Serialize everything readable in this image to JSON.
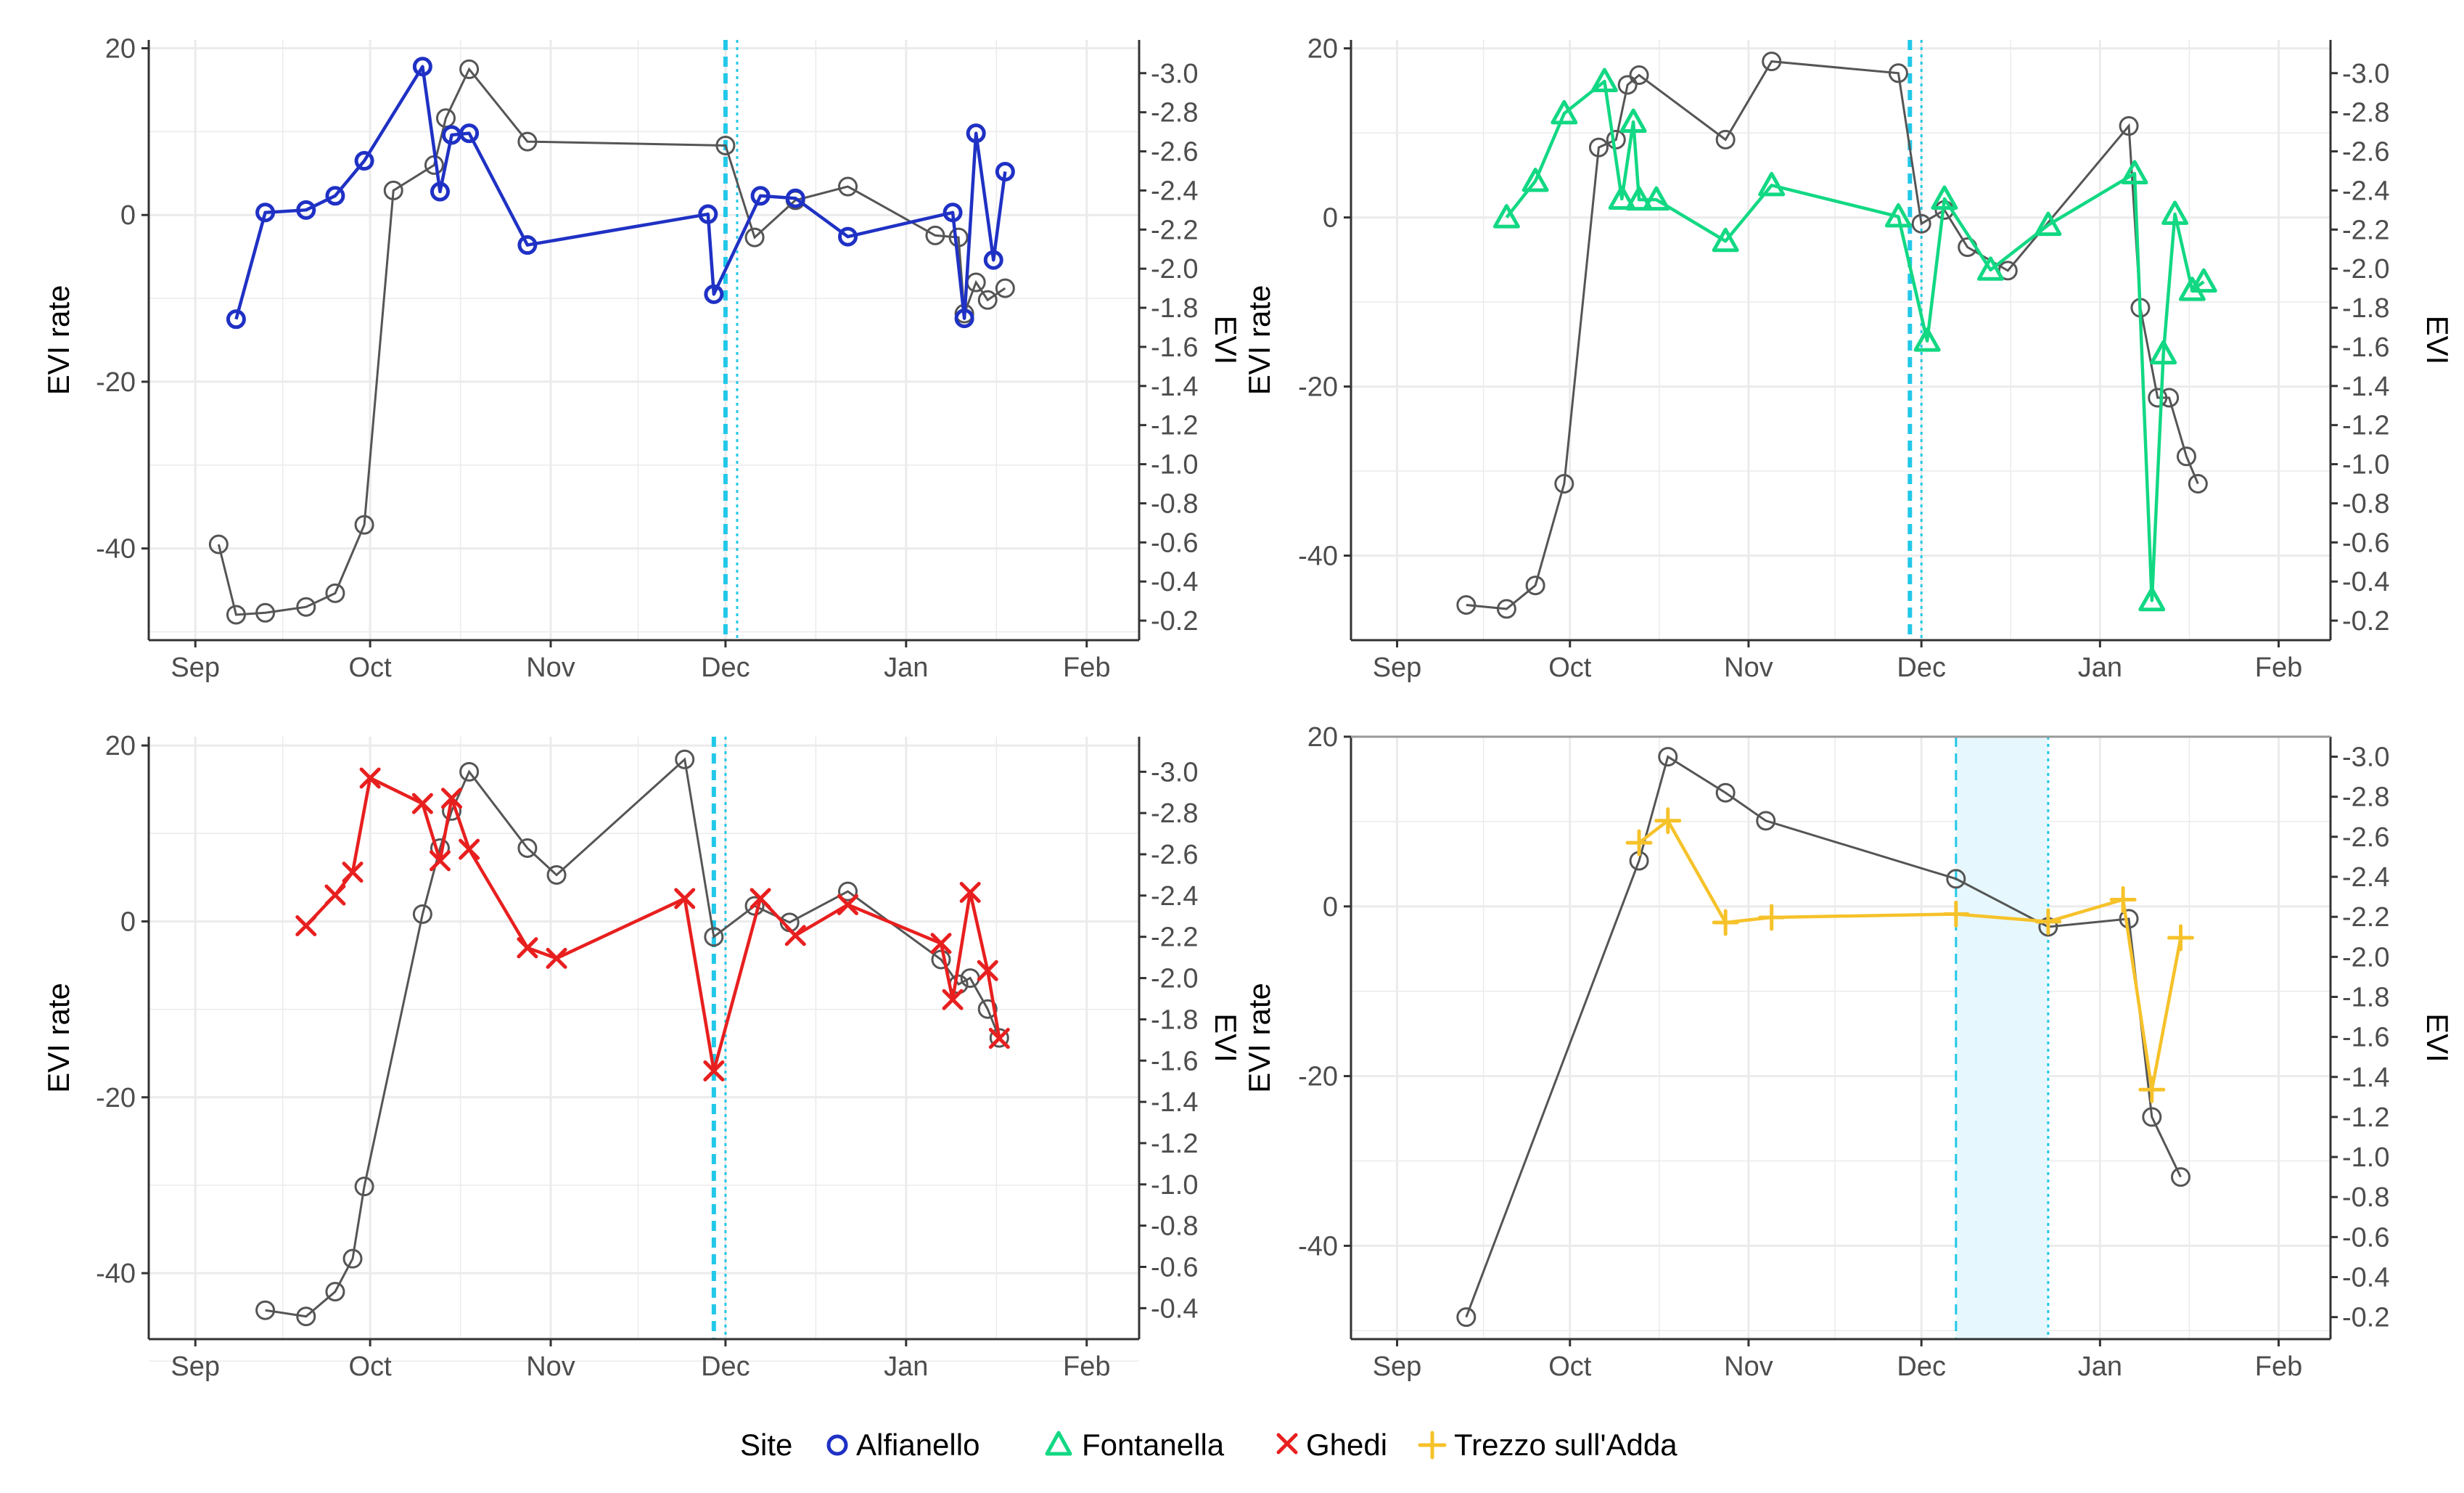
{
  "colors": {
    "evi": "#555555",
    "Alfianello": "#1f31c4",
    "Fontanella": "#12d883",
    "Ghedi": "#e81f1f",
    "Trezzo sull'Adda": "#f6c22a",
    "event_line": "#22c8e8",
    "event_shade": "#e6f8fd",
    "grid": "#ebebeb",
    "axis": "#333333"
  },
  "legend": {
    "title": "Site",
    "items": [
      {
        "label": "Alfianello",
        "symbol": "circle"
      },
      {
        "label": "Fontanella",
        "symbol": "triangle"
      },
      {
        "label": "Ghedi",
        "symbol": "cross"
      },
      {
        "label": "Trezzo sull'Adda",
        "symbol": "plus"
      }
    ]
  },
  "chart_data": [
    {
      "type": "line",
      "site": "Alfianello",
      "symbol": "circle",
      "ylabel": "EVI rate",
      "y2label": "EVI",
      "xlim": [
        -8,
        162
      ],
      "x_ticks": [
        {
          "x": 0,
          "label": "Sep"
        },
        {
          "x": 30,
          "label": "Oct"
        },
        {
          "x": 61,
          "label": "Nov"
        },
        {
          "x": 91,
          "label": "Dec"
        },
        {
          "x": 122,
          "label": "Jan"
        },
        {
          "x": 153,
          "label": "Feb"
        }
      ],
      "ylim": [
        -51,
        21
      ],
      "y_ticks": [
        20,
        0,
        -20,
        -40
      ],
      "y2lim": [
        0.1,
        3.17
      ],
      "y2_ticks": [
        3.0,
        2.8,
        2.6,
        2.4,
        2.2,
        2.0,
        1.8,
        1.6,
        1.4,
        1.2,
        1.0,
        0.8,
        0.6,
        0.4,
        0.2
      ],
      "rate": {
        "x": [
          7,
          12,
          19,
          24,
          29,
          39,
          42,
          44,
          47,
          57,
          88,
          89,
          97,
          103,
          112,
          130,
          132,
          134,
          137,
          139
        ],
        "y": [
          -12.5,
          0.3,
          0.6,
          2.3,
          6.5,
          17.8,
          2.8,
          9.6,
          9.8,
          -3.6,
          0.1,
          -9.5,
          2.3,
          2.0,
          -2.6,
          0.3,
          -12.4,
          9.8,
          -5.4,
          5.2
        ]
      },
      "evi": {
        "x": [
          4,
          7,
          12,
          19,
          24,
          29,
          34,
          41,
          43,
          47,
          57,
          91,
          96,
          103,
          112,
          127,
          131,
          132,
          134,
          136,
          139
        ],
        "y": [
          0.59,
          0.23,
          0.24,
          0.27,
          0.34,
          0.69,
          2.4,
          2.53,
          2.77,
          3.02,
          2.65,
          2.63,
          2.16,
          2.35,
          2.42,
          2.17,
          2.16,
          1.77,
          1.93,
          1.84,
          1.9
        ]
      },
      "event": {
        "start": 91,
        "end": 93
      }
    },
    {
      "type": "line",
      "site": "Fontanella",
      "symbol": "triangle",
      "ylabel": "EVI rate",
      "y2label": "EVI",
      "xlim": [
        -8,
        162
      ],
      "x_ticks": [
        {
          "x": 0,
          "label": "Sep"
        },
        {
          "x": 30,
          "label": "Oct"
        },
        {
          "x": 61,
          "label": "Nov"
        },
        {
          "x": 91,
          "label": "Dec"
        },
        {
          "x": 122,
          "label": "Jan"
        },
        {
          "x": 153,
          "label": "Feb"
        }
      ],
      "ylim": [
        -50,
        21
      ],
      "y_ticks": [
        20,
        0,
        -20,
        -40
      ],
      "y2lim": [
        0.1,
        3.17
      ],
      "y2_ticks": [
        3.0,
        2.8,
        2.6,
        2.4,
        2.2,
        2.0,
        1.8,
        1.6,
        1.4,
        1.2,
        1.0,
        0.8,
        0.6,
        0.4,
        0.2
      ],
      "rate": {
        "x": [
          19,
          24,
          29,
          36,
          39,
          41,
          42,
          45,
          57,
          65,
          87,
          92,
          95,
          103,
          113,
          128,
          131,
          133,
          135,
          138,
          140
        ],
        "y": [
          0.0,
          4.3,
          12.3,
          16.1,
          2.2,
          11.3,
          2.1,
          2.1,
          -2.8,
          3.8,
          0.1,
          -14.6,
          2.2,
          -6.2,
          -0.9,
          5.2,
          -45.3,
          -16.1,
          0.4,
          -8.6,
          -7.6
        ]
      },
      "evi": {
        "x": [
          12,
          19,
          24,
          29,
          35,
          38,
          40,
          42,
          57,
          65,
          87,
          91,
          95,
          99,
          106,
          127,
          129,
          132,
          134,
          137,
          139
        ],
        "y": [
          0.28,
          0.26,
          0.38,
          0.9,
          2.62,
          2.66,
          2.94,
          2.99,
          2.66,
          3.06,
          3.0,
          2.23,
          2.3,
          2.11,
          1.99,
          2.73,
          1.8,
          1.34,
          1.34,
          1.04,
          0.9
        ]
      },
      "event": {
        "start": 89,
        "end": 91
      }
    },
    {
      "type": "line",
      "site": "Ghedi",
      "symbol": "cross",
      "ylabel": "EVI rate",
      "y2label": "EVI",
      "xlim": [
        -8,
        162
      ],
      "x_ticks": [
        {
          "x": 0,
          "label": "Sep"
        },
        {
          "x": 30,
          "label": "Oct"
        },
        {
          "x": 61,
          "label": "Nov"
        },
        {
          "x": 91,
          "label": "Dec"
        },
        {
          "x": 122,
          "label": "Jan"
        },
        {
          "x": 153,
          "label": "Feb"
        }
      ],
      "ylim": [
        -47.5,
        21
      ],
      "y_ticks": [
        20,
        0,
        -20,
        -40
      ],
      "y2lim": [
        0.25,
        3.17
      ],
      "y2_ticks": [
        3.0,
        2.8,
        2.6,
        2.4,
        2.2,
        2.0,
        1.8,
        1.6,
        1.4,
        1.2,
        1.0,
        0.8,
        0.6,
        0.4
      ],
      "rate": {
        "x": [
          19,
          24,
          27,
          30,
          39,
          42,
          44,
          47,
          57,
          62,
          84,
          89,
          97,
          103,
          112,
          128,
          130,
          133,
          136,
          138
        ],
        "y": [
          -0.5,
          3.0,
          5.6,
          16.3,
          13.4,
          6.9,
          14.0,
          8.2,
          -3.0,
          -4.2,
          2.6,
          -17.0,
          2.6,
          -1.6,
          1.9,
          -2.5,
          -8.9,
          3.3,
          -5.6,
          -13.3
        ]
      },
      "evi": {
        "x": [
          12,
          19,
          24,
          27,
          29,
          39,
          42,
          44,
          47,
          57,
          62,
          84,
          89,
          96,
          102,
          112,
          128,
          131,
          133,
          136,
          138
        ],
        "y": [
          0.39,
          0.36,
          0.48,
          0.64,
          0.99,
          2.31,
          2.63,
          2.81,
          3.0,
          2.63,
          2.5,
          3.06,
          2.2,
          2.35,
          2.27,
          2.42,
          2.09,
          1.97,
          2.0,
          1.85,
          1.71
        ]
      },
      "event": {
        "start": 89,
        "end": 91
      }
    },
    {
      "type": "line",
      "site": "Trezzo sull'Adda",
      "symbol": "plus",
      "ylabel": "EVI rate",
      "y2label": "EVI",
      "xlim": [
        -8,
        162
      ],
      "x_ticks": [
        {
          "x": 0,
          "label": "Sep"
        },
        {
          "x": 30,
          "label": "Oct"
        },
        {
          "x": 61,
          "label": "Nov"
        },
        {
          "x": 91,
          "label": "Dec"
        },
        {
          "x": 122,
          "label": "Jan"
        },
        {
          "x": 153,
          "label": "Feb"
        }
      ],
      "ylim": [
        -51,
        20
      ],
      "y_ticks": [
        20,
        0,
        -20,
        -40
      ],
      "y2lim": [
        0.09,
        3.1
      ],
      "y2_ticks": [
        3.0,
        2.8,
        2.6,
        2.4,
        2.2,
        2.0,
        1.8,
        1.6,
        1.4,
        1.2,
        1.0,
        0.8,
        0.6,
        0.4,
        0.2
      ],
      "rate": {
        "x": [
          42,
          47,
          57,
          65,
          97,
          113,
          126,
          131,
          136
        ],
        "y": [
          7.5,
          10.1,
          -1.9,
          -1.3,
          -0.9,
          -1.8,
          0.8,
          -21.6,
          -3.7
        ]
      },
      "evi": {
        "x": [
          12,
          42,
          47,
          57,
          64,
          97,
          113,
          127,
          131,
          136
        ],
        "y": [
          0.2,
          2.48,
          3.0,
          2.82,
          2.68,
          2.39,
          2.15,
          2.19,
          1.2,
          0.9
        ]
      },
      "event": {
        "start": 97,
        "end": 113,
        "shaded": true
      }
    }
  ]
}
